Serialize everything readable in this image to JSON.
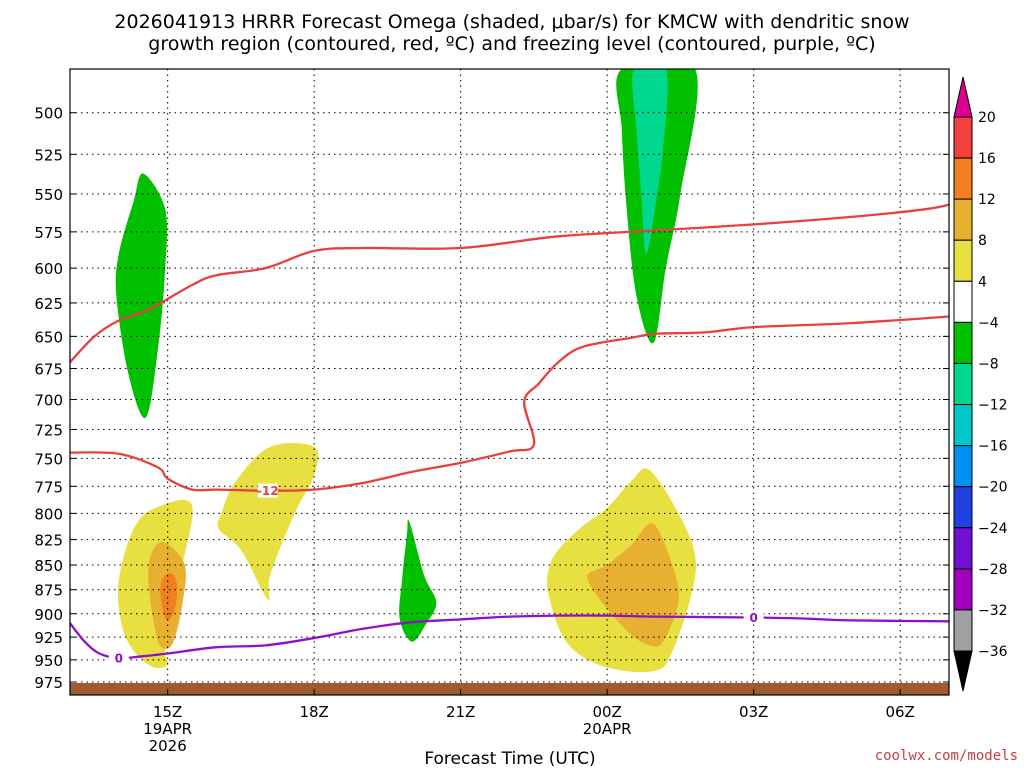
{
  "title_line1": "2026041913 HRRR Forecast Omega (shaded, μbar/s) for KMCW with dendritic snow",
  "title_line2": "growth region (contoured, red, ºC) and freezing level (contoured, purple, ºC)",
  "credit": "coolwx.com/models",
  "colors": {
    "dgz_contour": "#e84040",
    "freezing_contour": "#9010c8",
    "terrain": "#a05a30"
  },
  "chart_data": {
    "type": "contour",
    "xlabel": "Forecast Time (UTC)",
    "ylabel": "",
    "x_unit": "forecast hour from 2026041913",
    "xlim": [
      0,
      18
    ],
    "ylim": [
      990,
      475
    ],
    "y_scale": "log-pressure",
    "grid": true,
    "x_ticks": [
      {
        "x": 2,
        "label": "15Z",
        "sub1": "19APR",
        "sub2": "2026"
      },
      {
        "x": 5,
        "label": "18Z",
        "sub1": "",
        "sub2": ""
      },
      {
        "x": 8,
        "label": "21Z",
        "sub1": "",
        "sub2": ""
      },
      {
        "x": 11,
        "label": "00Z",
        "sub1": "20APR",
        "sub2": ""
      },
      {
        "x": 14,
        "label": "03Z",
        "sub1": "",
        "sub2": ""
      },
      {
        "x": 17,
        "label": "06Z",
        "sub1": "",
        "sub2": ""
      }
    ],
    "y_ticks": [
      500,
      525,
      550,
      575,
      600,
      625,
      650,
      675,
      700,
      725,
      750,
      775,
      800,
      825,
      850,
      875,
      900,
      925,
      950,
      975
    ],
    "colorbar": {
      "labels": [
        "20",
        "16",
        "12",
        "8",
        "4",
        "−4",
        "−8",
        "−12",
        "−16",
        "−20",
        "−24",
        "−28",
        "−32",
        "−36"
      ],
      "bins": [
        {
          "color": "#e00090"
        },
        {
          "color": "#f04040"
        },
        {
          "color": "#f08020"
        },
        {
          "color": "#e8b030"
        },
        {
          "color": "#e8e040"
        },
        {
          "color": "#ffffff"
        },
        {
          "color": "#00c000"
        },
        {
          "color": "#00d890"
        },
        {
          "color": "#00c8c8"
        },
        {
          "color": "#0090f0"
        },
        {
          "color": "#2040e0"
        },
        {
          "color": "#7010d0"
        },
        {
          "color": "#a000c0"
        },
        {
          "color": "#a0a0a0"
        },
        {
          "color": "#000000"
        }
      ]
    },
    "shaded_regions": [
      {
        "name": "omega-green-1",
        "color": "#00c000",
        "points": [
          [
            1.55,
            715
          ],
          [
            1.2,
            680
          ],
          [
            0.95,
            620
          ],
          [
            1.0,
            590
          ],
          [
            1.3,
            555
          ],
          [
            1.5,
            537
          ],
          [
            1.95,
            560
          ],
          [
            1.95,
            600
          ],
          [
            1.8,
            660
          ]
        ]
      },
      {
        "name": "omega-yellow-1",
        "color": "#e8e040",
        "points": [
          [
            1.0,
            865
          ],
          [
            1.3,
            815
          ],
          [
            1.75,
            795
          ],
          [
            2.5,
            793
          ],
          [
            2.2,
            870
          ],
          [
            1.95,
            935
          ],
          [
            2.0,
            955
          ],
          [
            1.7,
            958
          ],
          [
            1.3,
            940
          ],
          [
            1.05,
            910
          ]
        ]
      },
      {
        "name": "omega-yellow-2",
        "color": "#e8e040",
        "points": [
          [
            3.1,
            800
          ],
          [
            3.4,
            770
          ],
          [
            4.1,
            740
          ],
          [
            5.0,
            740
          ],
          [
            5.0,
            765
          ],
          [
            4.6,
            800
          ],
          [
            4.1,
            860
          ],
          [
            4.05,
            885
          ],
          [
            3.5,
            835
          ],
          [
            3.05,
            815
          ]
        ]
      },
      {
        "name": "omega-orange-1",
        "color": "#e8b030",
        "points": [
          [
            1.6,
            860
          ],
          [
            1.7,
            835
          ],
          [
            1.95,
            828
          ],
          [
            2.35,
            850
          ],
          [
            2.3,
            890
          ],
          [
            2.1,
            932
          ],
          [
            1.85,
            935
          ],
          [
            1.7,
            905
          ]
        ]
      },
      {
        "name": "omega-red-1",
        "color": "#f08020",
        "points": [
          [
            1.85,
            875
          ],
          [
            1.95,
            860
          ],
          [
            2.12,
            860
          ],
          [
            2.2,
            875
          ],
          [
            2.12,
            900
          ],
          [
            1.95,
            905
          ]
        ]
      },
      {
        "name": "omega-green-2",
        "color": "#00c000",
        "points": [
          [
            7.0,
            930
          ],
          [
            6.75,
            905
          ],
          [
            6.8,
            865
          ],
          [
            6.9,
            820
          ],
          [
            6.95,
            808
          ],
          [
            7.25,
            860
          ],
          [
            7.5,
            888
          ],
          [
            7.3,
            910
          ]
        ]
      },
      {
        "name": "omega-yellow-3",
        "color": "#e8e040",
        "points": [
          [
            10.6,
            950
          ],
          [
            10.1,
            925
          ],
          [
            9.8,
            880
          ],
          [
            9.8,
            855
          ],
          [
            10.0,
            835
          ],
          [
            10.5,
            812
          ],
          [
            11.0,
            795
          ],
          [
            11.5,
            770
          ],
          [
            11.85,
            760
          ],
          [
            12.4,
            795
          ],
          [
            12.8,
            840
          ],
          [
            12.7,
            885
          ],
          [
            12.3,
            945
          ],
          [
            12.0,
            962
          ],
          [
            11.3,
            962
          ]
        ]
      },
      {
        "name": "omega-orange-2",
        "color": "#e8b030",
        "points": [
          [
            10.6,
            865
          ],
          [
            11.0,
            850
          ],
          [
            11.5,
            830
          ],
          [
            11.95,
            810
          ],
          [
            12.4,
            860
          ],
          [
            12.45,
            890
          ],
          [
            12.2,
            925
          ],
          [
            11.95,
            935
          ],
          [
            11.4,
            918
          ]
        ]
      },
      {
        "name": "omega-green-3",
        "color": "#00c000",
        "points": [
          [
            11.3,
            475
          ],
          [
            12.8,
            475
          ],
          [
            12.5,
            550
          ],
          [
            12.2,
            600
          ],
          [
            11.95,
            655
          ],
          [
            11.6,
            620
          ],
          [
            11.4,
            560
          ],
          [
            11.3,
            510
          ]
        ]
      },
      {
        "name": "omega-teal-1",
        "color": "#00d890",
        "points": [
          [
            11.55,
            475
          ],
          [
            12.2,
            475
          ],
          [
            12.15,
            520
          ],
          [
            12.0,
            555
          ],
          [
            11.8,
            590
          ],
          [
            11.7,
            550
          ],
          [
            11.6,
            510
          ]
        ]
      }
    ],
    "contours": [
      {
        "name": "dgz-upper",
        "kind": "dgz",
        "points": [
          [
            0,
            670
          ],
          [
            0.5,
            650
          ],
          [
            1.0,
            638
          ],
          [
            1.6,
            630
          ],
          [
            2.5,
            612
          ],
          [
            3.0,
            605
          ],
          [
            4.0,
            600
          ],
          [
            5.0,
            588
          ],
          [
            6.0,
            586
          ],
          [
            8.0,
            586
          ],
          [
            10.0,
            578
          ],
          [
            12.0,
            574
          ],
          [
            14.0,
            570
          ],
          [
            16.0,
            565
          ],
          [
            17.5,
            560
          ],
          [
            18,
            557
          ]
        ]
      },
      {
        "name": "dgz-lower",
        "kind": "dgz",
        "label": "-12",
        "label_x": 4.05,
        "points": [
          [
            0,
            745
          ],
          [
            1.0,
            746
          ],
          [
            1.8,
            758
          ],
          [
            2.0,
            768
          ],
          [
            2.5,
            778
          ],
          [
            3.0,
            778
          ],
          [
            4.0,
            779
          ],
          [
            5.0,
            778
          ],
          [
            6.0,
            772
          ],
          [
            7.0,
            762
          ],
          [
            8.0,
            754
          ],
          [
            9.0,
            744
          ],
          [
            9.5,
            738
          ],
          [
            9.3,
            702
          ],
          [
            9.6,
            687
          ],
          [
            10.0,
            670
          ],
          [
            10.5,
            658
          ],
          [
            11.5,
            651
          ],
          [
            12.0,
            648
          ],
          [
            13.0,
            647
          ],
          [
            14.0,
            643
          ],
          [
            16.0,
            640
          ],
          [
            18,
            635
          ]
        ]
      },
      {
        "name": "freezing-level",
        "kind": "freezing",
        "label": "0",
        "label_x": 1.0,
        "label_x2": 14.0,
        "points": [
          [
            0,
            910
          ],
          [
            0.3,
            930
          ],
          [
            0.6,
            943
          ],
          [
            1.0,
            948
          ],
          [
            1.5,
            946
          ],
          [
            2.0,
            943
          ],
          [
            3.0,
            936
          ],
          [
            4.0,
            934
          ],
          [
            5.0,
            926
          ],
          [
            6.0,
            916
          ],
          [
            7.0,
            909
          ],
          [
            8.0,
            906
          ],
          [
            9.0,
            903
          ],
          [
            10.0,
            902
          ],
          [
            11.0,
            902
          ],
          [
            12.0,
            903
          ],
          [
            14.0,
            904
          ],
          [
            15.0,
            905
          ],
          [
            16.0,
            907
          ],
          [
            18,
            908
          ]
        ]
      }
    ]
  }
}
